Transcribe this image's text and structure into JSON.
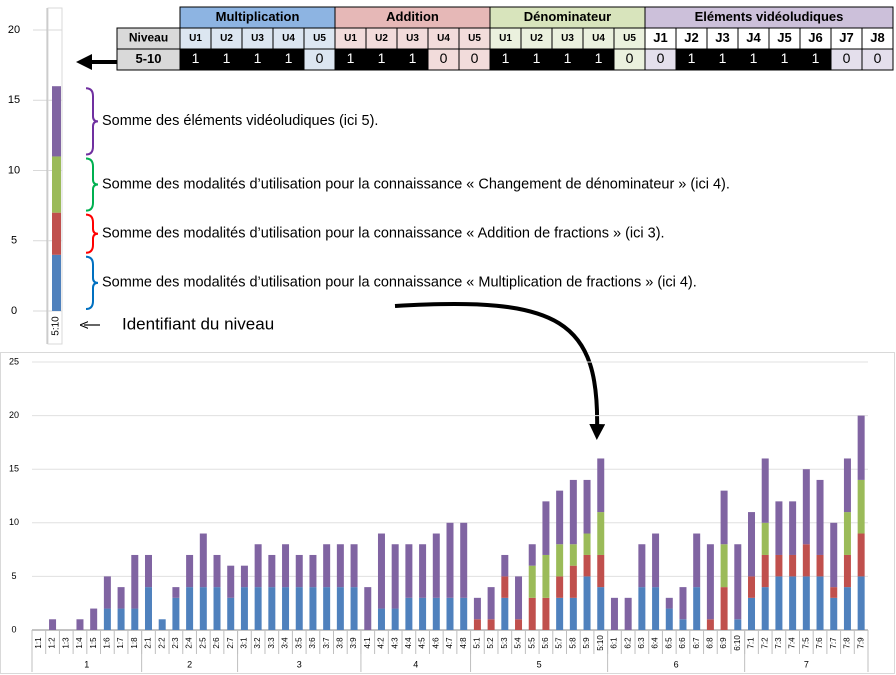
{
  "chart_data": [
    {
      "type": "bar",
      "stacked": true,
      "categories": [
        "5:10"
      ],
      "ylim": [
        0,
        20
      ],
      "yticks": [
        0,
        5,
        10,
        15,
        20
      ],
      "series": [
        {
          "color": "#4f81bd",
          "values": [
            4
          ]
        },
        {
          "color": "#c0504d",
          "values": [
            3
          ]
        },
        {
          "color": "#9bbb59",
          "values": [
            4
          ]
        },
        {
          "color": "#8064a2",
          "values": [
            5
          ]
        }
      ],
      "annotations": [
        {
          "text": "Somme des modalités d’utilisation pour la connaissance « Multiplication de fractions » (ici 4).",
          "color": "#0070c0"
        },
        {
          "text": "Somme des modalités d’utilisation pour la connaissance « Addition de fractions » (ici 3).",
          "color": "#ff0000"
        },
        {
          "text": "Somme des modalités d’utilisation pour la connaissance « Changement de dénominateur » (ici 4).",
          "color": "#00b050"
        },
        {
          "text": "Somme des éléments vidéoludiques  (ici 5).",
          "color": "#7030a0"
        }
      ],
      "x_annotation": "Identifiant du niveau"
    },
    {
      "type": "bar",
      "stacked": true,
      "grid": true,
      "categories": [
        "1:1",
        "1:2",
        "1:3",
        "1:4",
        "1:5",
        "1:6",
        "1:7",
        "1:8",
        "2:1",
        "2:2",
        "2:3",
        "2:4",
        "2:5",
        "2:6",
        "2:7",
        "3:1",
        "3:2",
        "3:3",
        "3:4",
        "3:5",
        "3:6",
        "3:7",
        "3:8",
        "3:9",
        "4:1",
        "4:2",
        "4:3",
        "4:4",
        "4:5",
        "4:6",
        "4:7",
        "4:8",
        "5:1",
        "5:2",
        "5:3",
        "5:4",
        "5:5",
        "5:6",
        "5:7",
        "5:8",
        "5:9",
        "5:10",
        "6:1",
        "6:2",
        "6:3",
        "6:4",
        "6:5",
        "6:6",
        "6:7",
        "6:8",
        "6:9",
        "6:10",
        "7:1",
        "7:2",
        "7:3",
        "7:4",
        "7:5",
        "7:6",
        "7:7",
        "7:8",
        "7:9"
      ],
      "groups": [
        {
          "label": "1",
          "size": 8
        },
        {
          "label": "2",
          "size": 7
        },
        {
          "label": "3",
          "size": 9
        },
        {
          "label": "4",
          "size": 8
        },
        {
          "label": "5",
          "size": 10
        },
        {
          "label": "6",
          "size": 10
        },
        {
          "label": "7",
          "size": 9
        }
      ],
      "ylim": [
        0,
        25
      ],
      "yticks": [
        0,
        5,
        10,
        15,
        20,
        25
      ],
      "series": [
        {
          "color": "#4f81bd",
          "values": [
            0,
            0,
            0,
            0,
            0,
            2,
            2,
            2,
            4,
            1,
            3,
            4,
            4,
            4,
            3,
            4,
            4,
            4,
            4,
            4,
            4,
            4,
            4,
            4,
            0,
            2,
            2,
            3,
            3,
            3,
            3,
            3,
            0,
            0,
            3,
            0,
            0,
            0,
            3,
            3,
            5,
            4,
            0,
            0,
            4,
            4,
            2,
            1,
            4,
            0,
            0,
            1,
            3,
            4,
            5,
            5,
            5,
            5,
            3,
            4,
            5
          ]
        },
        {
          "color": "#c0504d",
          "values": [
            0,
            0,
            0,
            0,
            0,
            0,
            0,
            0,
            0,
            0,
            0,
            0,
            0,
            0,
            0,
            0,
            0,
            0,
            0,
            0,
            0,
            0,
            0,
            0,
            0,
            0,
            0,
            0,
            0,
            0,
            0,
            0,
            1,
            1,
            2,
            1,
            3,
            3,
            2,
            3,
            2,
            3,
            0,
            0,
            0,
            0,
            0,
            0,
            0,
            1,
            4,
            0,
            2,
            3,
            2,
            2,
            3,
            2,
            1,
            3,
            4
          ]
        },
        {
          "color": "#9bbb59",
          "values": [
            0,
            0,
            0,
            0,
            0,
            0,
            0,
            0,
            0,
            0,
            0,
            0,
            0,
            0,
            0,
            0,
            0,
            0,
            0,
            0,
            0,
            0,
            0,
            0,
            0,
            0,
            0,
            0,
            0,
            0,
            0,
            0,
            0,
            0,
            0,
            0,
            3,
            4,
            3,
            2,
            2,
            4,
            0,
            0,
            0,
            0,
            0,
            0,
            0,
            0,
            4,
            0,
            0,
            3,
            0,
            0,
            0,
            0,
            0,
            4,
            5
          ]
        },
        {
          "color": "#8064a2",
          "values": [
            0,
            1,
            0,
            1,
            2,
            3,
            2,
            5,
            3,
            0,
            1,
            3,
            5,
            3,
            3,
            2,
            4,
            3,
            4,
            3,
            3,
            4,
            4,
            4,
            4,
            7,
            6,
            5,
            5,
            6,
            7,
            7,
            2,
            3,
            2,
            4,
            2,
            5,
            5,
            6,
            5,
            5,
            3,
            3,
            4,
            5,
            1,
            3,
            5,
            7,
            5,
            7,
            6,
            6,
            5,
            5,
            7,
            7,
            6,
            5,
            6
          ]
        }
      ]
    }
  ],
  "table": {
    "row_header": "Niveau",
    "row_label": "5-10",
    "groups": [
      {
        "title": "Multiplication",
        "color": "#8db4e2",
        "zero_color": "#dce6f1",
        "columns": [
          "U1",
          "U2",
          "U3",
          "U4",
          "U5"
        ],
        "values": [
          1,
          1,
          1,
          1,
          0
        ]
      },
      {
        "title": "Addition",
        "color": "#e6b8b7",
        "zero_color": "#f2dcdb",
        "columns": [
          "U1",
          "U2",
          "U3",
          "U4",
          "U5"
        ],
        "values": [
          1,
          1,
          1,
          0,
          0
        ]
      },
      {
        "title": "Dénominateur",
        "color": "#d8e4bc",
        "zero_color": "#ebf1de",
        "columns": [
          "U1",
          "U2",
          "U3",
          "U4",
          "U5"
        ],
        "values": [
          1,
          1,
          1,
          1,
          0
        ]
      },
      {
        "title": "Eléments vidéoludiques",
        "color": "#ccc0da",
        "zero_color": "#e4dfec",
        "columns": [
          "J1",
          "J2",
          "J3",
          "J4",
          "J5",
          "J6",
          "J7",
          "J8"
        ],
        "values": [
          0,
          1,
          1,
          1,
          1,
          1,
          0,
          0
        ]
      }
    ]
  }
}
